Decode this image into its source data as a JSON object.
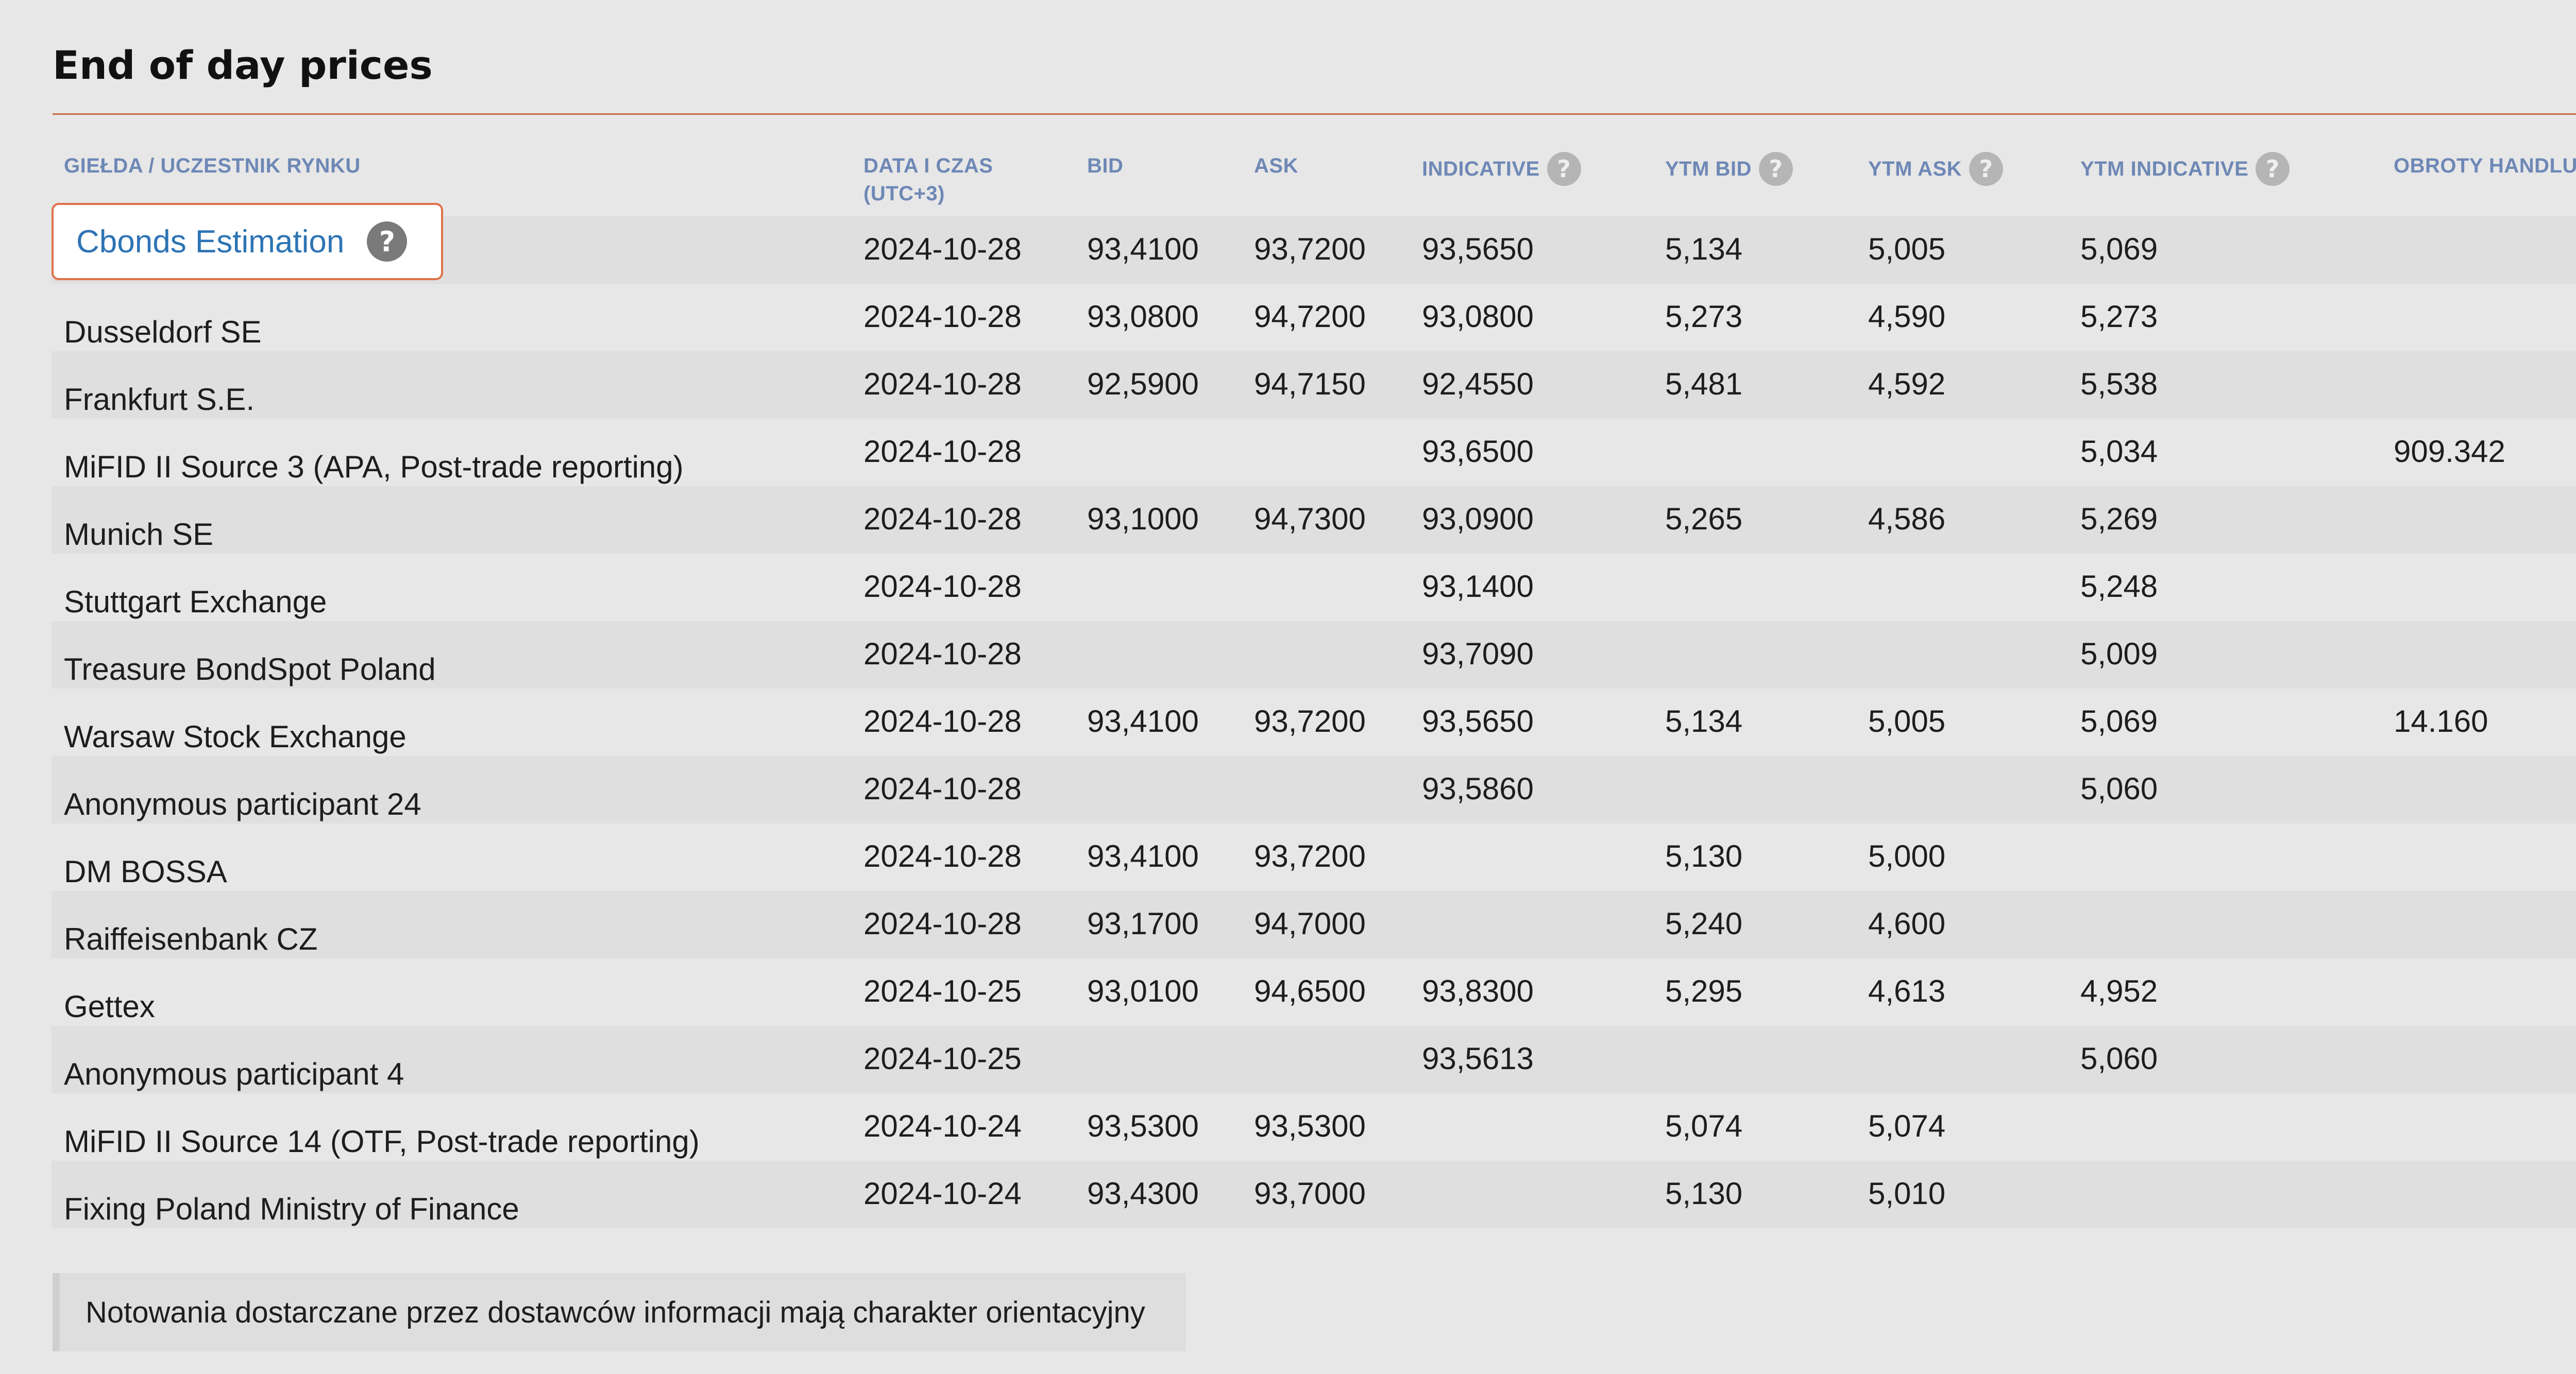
{
  "section": {
    "title": "End of day prices"
  },
  "columns": [
    {
      "label": "GIEŁDA / UCZESTNIK RYNKU",
      "help": false
    },
    {
      "label": "DATA I CZAS (UTC+3)",
      "help": false
    },
    {
      "label": "BID",
      "help": false
    },
    {
      "label": "ASK",
      "help": false
    },
    {
      "label": "INDICATIVE",
      "help": true
    },
    {
      "label": "YTM BID",
      "help": true
    },
    {
      "label": "YTM ASK",
      "help": true
    },
    {
      "label": "YTM INDICATIVE",
      "help": true
    },
    {
      "label": "OBROTY HANDLU",
      "help": false
    }
  ],
  "help_glyph": "?",
  "rows": [
    {
      "name": "Cbonds Estimation",
      "highlighted": true,
      "date": "2024-10-28",
      "bid": "93,4100",
      "ask": "93,7200",
      "indicative": "93,5650",
      "ytm_bid": "5,134",
      "ytm_ask": "5,005",
      "ytm_indicative": "5,069",
      "turnover": ""
    },
    {
      "name": "Dusseldorf SE",
      "date": "2024-10-28",
      "bid": "93,0800",
      "ask": "94,7200",
      "indicative": "93,0800",
      "ytm_bid": "5,273",
      "ytm_ask": "4,590",
      "ytm_indicative": "5,273",
      "turnover": ""
    },
    {
      "name": "Frankfurt S.E.",
      "date": "2024-10-28",
      "bid": "92,5900",
      "ask": "94,7150",
      "indicative": "92,4550",
      "ytm_bid": "5,481",
      "ytm_ask": "4,592",
      "ytm_indicative": "5,538",
      "turnover": ""
    },
    {
      "name": "MiFID II Source 3 (APA, Post-trade reporting)",
      "date": "2024-10-28",
      "bid": "",
      "ask": "",
      "indicative": "93,6500",
      "ytm_bid": "",
      "ytm_ask": "",
      "ytm_indicative": "5,034",
      "turnover": "909.342"
    },
    {
      "name": "Munich SE",
      "date": "2024-10-28",
      "bid": "93,1000",
      "ask": "94,7300",
      "indicative": "93,0900",
      "ytm_bid": "5,265",
      "ytm_ask": "4,586",
      "ytm_indicative": "5,269",
      "turnover": ""
    },
    {
      "name": "Stuttgart Exchange",
      "date": "2024-10-28",
      "bid": "",
      "ask": "",
      "indicative": "93,1400",
      "ytm_bid": "",
      "ytm_ask": "",
      "ytm_indicative": "5,248",
      "turnover": ""
    },
    {
      "name": "Treasure BondSpot Poland",
      "date": "2024-10-28",
      "bid": "",
      "ask": "",
      "indicative": "93,7090",
      "ytm_bid": "",
      "ytm_ask": "",
      "ytm_indicative": "5,009",
      "turnover": ""
    },
    {
      "name": "Warsaw Stock Exchange",
      "date": "2024-10-28",
      "bid": "93,4100",
      "ask": "93,7200",
      "indicative": "93,5650",
      "ytm_bid": "5,134",
      "ytm_ask": "5,005",
      "ytm_indicative": "5,069",
      "turnover": "14.160"
    },
    {
      "name": "Anonymous participant 24",
      "date": "2024-10-28",
      "bid": "",
      "ask": "",
      "indicative": "93,5860",
      "ytm_bid": "",
      "ytm_ask": "",
      "ytm_indicative": "5,060",
      "turnover": ""
    },
    {
      "name": "DM BOSSA",
      "date": "2024-10-28",
      "bid": "93,4100",
      "ask": "93,7200",
      "indicative": "",
      "ytm_bid": "5,130",
      "ytm_ask": "5,000",
      "ytm_indicative": "",
      "turnover": ""
    },
    {
      "name": "Raiffeisenbank CZ",
      "date": "2024-10-28",
      "bid": "93,1700",
      "ask": "94,7000",
      "indicative": "",
      "ytm_bid": "5,240",
      "ytm_ask": "4,600",
      "ytm_indicative": "",
      "turnover": ""
    },
    {
      "name": "Gettex",
      "date": "2024-10-25",
      "bid": "93,0100",
      "ask": "94,6500",
      "indicative": "93,8300",
      "ytm_bid": "5,295",
      "ytm_ask": "4,613",
      "ytm_indicative": "4,952",
      "turnover": ""
    },
    {
      "name": "Anonymous participant 4",
      "date": "2024-10-25",
      "bid": "",
      "ask": "",
      "indicative": "93,5613",
      "ytm_bid": "",
      "ytm_ask": "",
      "ytm_indicative": "5,060",
      "turnover": ""
    },
    {
      "name": "MiFID II Source 14 (OTF, Post-trade reporting)",
      "date": "2024-10-24",
      "bid": "93,5300",
      "ask": "93,5300",
      "indicative": "",
      "ytm_bid": "5,074",
      "ytm_ask": "5,074",
      "ytm_indicative": "",
      "turnover": ""
    },
    {
      "name": "Fixing Poland Ministry of Finance",
      "date": "2024-10-24",
      "bid": "93,4300",
      "ask": "93,7000",
      "indicative": "",
      "ytm_bid": "5,130",
      "ytm_ask": "5,010",
      "ytm_indicative": "",
      "turnover": ""
    }
  ],
  "footer": {
    "note": "Notowania dostarczane przez dostawców informacji mają charakter orientacyjny"
  },
  "colors": {
    "accent_rule": "#c66a45",
    "header_text": "#6e88b6",
    "link": "#2d74b4",
    "highlight_border": "#e0714a"
  }
}
